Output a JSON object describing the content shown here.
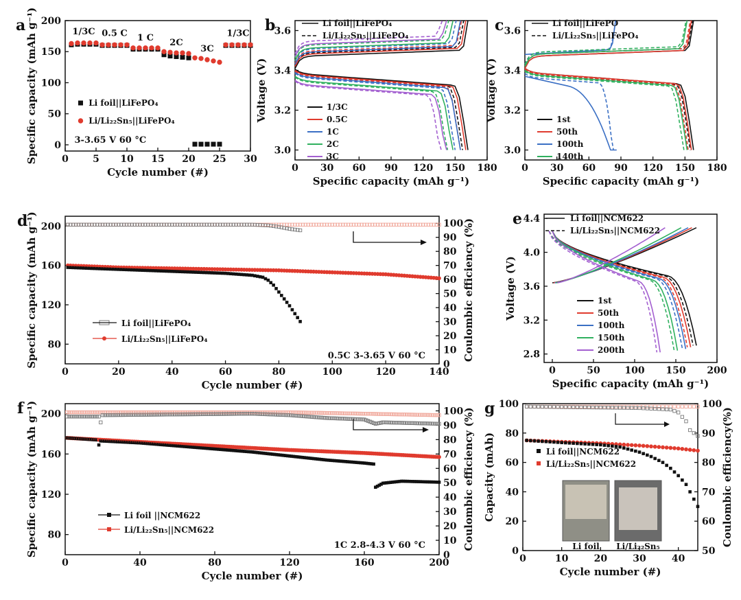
{
  "colors": {
    "black": "#111111",
    "red": "#e03b2e",
    "blue": "#3a6fc4",
    "green": "#2fb05e",
    "purple": "#a35fd0",
    "ce_red": "#f0a79a",
    "ce_gray": "#777777"
  },
  "charts": {
    "a": {
      "label": "a",
      "type": "scatter",
      "xlabel": "Cycle number (#)",
      "ylabel": "Specific capacity (mAh g⁻¹)",
      "xlim": [
        0,
        30
      ],
      "ylim": [
        -10,
        200
      ],
      "xticks": [
        0,
        5,
        10,
        15,
        20,
        25,
        30
      ],
      "yticks": [
        0,
        50,
        100,
        150,
        200
      ],
      "xtick_labels": [
        "0",
        "5",
        "10",
        "15",
        "20",
        "25",
        "30"
      ],
      "ytick_labels": [
        "0",
        "50",
        "100",
        "150",
        "200"
      ],
      "rate_labels": [
        {
          "text": "1/3C",
          "x": 3,
          "y": 178
        },
        {
          "text": "0.5 C",
          "x": 8,
          "y": 175
        },
        {
          "text": "1 C",
          "x": 13,
          "y": 168
        },
        {
          "text": "2C",
          "x": 18,
          "y": 160
        },
        {
          "text": "3C",
          "x": 23,
          "y": 150
        },
        {
          "text": "1/3C",
          "x": 28,
          "y": 175
        }
      ],
      "condition": "3-3.65 V 60 °C",
      "legend": [
        "Li foil||LiFePO₄",
        "Li/Li₂₂Sn₅||LiFePO₄"
      ],
      "series": [
        {
          "name": "Li foil||LiFePO4",
          "color": "black",
          "marker": "square",
          "points": [
            [
              1,
              161
            ],
            [
              2,
              162
            ],
            [
              3,
              162
            ],
            [
              4,
              162
            ],
            [
              5,
              162
            ],
            [
              6,
              160
            ],
            [
              7,
              160
            ],
            [
              8,
              160
            ],
            [
              9,
              160
            ],
            [
              10,
              160
            ],
            [
              11,
              154
            ],
            [
              12,
              154
            ],
            [
              13,
              154
            ],
            [
              14,
              154
            ],
            [
              15,
              154
            ],
            [
              16,
              145
            ],
            [
              17,
              143
            ],
            [
              18,
              142
            ],
            [
              19,
              141
            ],
            [
              20,
              140
            ],
            [
              21,
              1
            ],
            [
              22,
              1
            ],
            [
              23,
              1
            ],
            [
              24,
              1
            ],
            [
              25,
              1
            ],
            [
              26,
              160
            ],
            [
              27,
              160
            ],
            [
              28,
              160
            ],
            [
              29,
              160
            ],
            [
              30,
              160
            ]
          ]
        },
        {
          "name": "Li/Li22Sn5||LiFePO4",
          "color": "red",
          "marker": "circle",
          "points": [
            [
              1,
              163
            ],
            [
              2,
              164
            ],
            [
              3,
              164
            ],
            [
              4,
              164
            ],
            [
              5,
              164
            ],
            [
              6,
              161
            ],
            [
              7,
              161
            ],
            [
              8,
              161
            ],
            [
              9,
              161
            ],
            [
              10,
              161
            ],
            [
              11,
              156
            ],
            [
              12,
              156
            ],
            [
              13,
              156
            ],
            [
              14,
              156
            ],
            [
              15,
              156
            ],
            [
              16,
              150
            ],
            [
              17,
              149
            ],
            [
              18,
              148
            ],
            [
              19,
              148
            ],
            [
              20,
              147
            ],
            [
              21,
              140
            ],
            [
              22,
              139
            ],
            [
              23,
              137
            ],
            [
              24,
              135
            ],
            [
              25,
              133
            ],
            [
              26,
              161
            ],
            [
              27,
              161
            ],
            [
              28,
              161
            ],
            [
              29,
              161
            ],
            [
              30,
              161
            ]
          ]
        }
      ]
    },
    "b": {
      "label": "b",
      "type": "line",
      "xlabel": "Specific capacity (mAh g⁻¹)",
      "ylabel": "Voltage (V)",
      "xlim": [
        0,
        180
      ],
      "ylim": [
        2.95,
        3.65
      ],
      "xticks": [
        0,
        30,
        60,
        90,
        120,
        150,
        180
      ],
      "yticks": [
        3.0,
        3.2,
        3.4,
        3.6
      ],
      "xtick_labels": [
        "0",
        "30",
        "60",
        "90",
        "120",
        "150",
        "180"
      ],
      "ytick_labels": [
        "3.0",
        "3.2",
        "3.4",
        "3.6"
      ],
      "legend_top": [
        "Li foil||LiFePO₄",
        "Li/Li₂₂Sn₅||LiFePO₄"
      ],
      "legend_rates": [
        "1/3C",
        "0.5C",
        "1C",
        "2C",
        "3C"
      ],
      "curves": [
        {
          "rate": "1/3C",
          "color": "black",
          "cap": 162,
          "vc": 3.47,
          "vd": 3.385
        },
        {
          "rate": "0.5C",
          "color": "red",
          "cap": 160,
          "vc": 3.48,
          "vd": 3.38
        },
        {
          "rate": "1C",
          "color": "blue",
          "cap": 155,
          "vc": 3.49,
          "vd": 3.37
        },
        {
          "rate": "2C",
          "color": "green",
          "cap": 148,
          "vc": 3.51,
          "vd": 3.35
        },
        {
          "rate": "3C",
          "color": "purple",
          "cap": 142,
          "vc": 3.53,
          "vd": 3.33
        }
      ]
    },
    "c": {
      "label": "c",
      "type": "line",
      "xlabel": "Specific capacity (mAh g⁻¹)",
      "ylabel": "Voltage (V)",
      "xlim": [
        0,
        180
      ],
      "ylim": [
        2.95,
        3.65
      ],
      "xticks": [
        0,
        30,
        60,
        90,
        120,
        150,
        180
      ],
      "yticks": [
        3.0,
        3.2,
        3.4,
        3.6
      ],
      "xtick_labels": [
        "0",
        "30",
        "60",
        "90",
        "120",
        "150",
        "180"
      ],
      "ytick_labels": [
        "3.0",
        "3.2",
        "3.4",
        "3.6"
      ],
      "legend_top": [
        "Li foil||LiFePO",
        "Li/Li₂₂Sn₅||LiFePO₄"
      ],
      "legend_cycles": [
        "1st",
        "50th",
        "100th",
        "140th"
      ],
      "curves": [
        {
          "cycle": "1st",
          "color": "black",
          "cap": 158,
          "vc": 3.47,
          "vd": 3.39
        },
        {
          "cycle": "50th",
          "color": "red",
          "cap": 156,
          "vc": 3.47,
          "vd": 3.39
        },
        {
          "cycle": "100th",
          "color": "blue",
          "cap": 86,
          "vc": 3.48,
          "vd": 3.37
        },
        {
          "cycle": "140th",
          "color": "green",
          "cap": 152,
          "vc": 3.48,
          "vd": 3.38
        }
      ]
    },
    "d": {
      "label": "d",
      "type": "scatter",
      "xlabel": "Cycle number (#)",
      "ylabel": "Specific capacity (mAh g⁻¹)",
      "y2label": "Coulombic efficiency (%)",
      "xlim": [
        0,
        140
      ],
      "ylim": [
        60,
        210
      ],
      "y2lim": [
        0,
        105
      ],
      "xticks": [
        0,
        20,
        40,
        60,
        80,
        100,
        120,
        140
      ],
      "yticks": [
        80,
        120,
        160,
        200
      ],
      "y2ticks": [
        0,
        10,
        20,
        30,
        40,
        50,
        60,
        70,
        80,
        90,
        100
      ],
      "xtick_labels": [
        "0",
        "20",
        "40",
        "60",
        "80",
        "100",
        "120",
        "140"
      ],
      "ytick_labels": [
        "80",
        "120",
        "160",
        "200"
      ],
      "y2tick_labels": [
        "0",
        "10",
        "20",
        "30",
        "40",
        "50",
        "60",
        "70",
        "80",
        "90",
        "100"
      ],
      "legend": [
        "Li foil||LiFePO₄",
        "Li/Li₂₂Sn₅||LiFePO₄"
      ],
      "condition": "0.5C  3-3.65 V  60 °C",
      "foil_capacity": [
        [
          1,
          158
        ],
        [
          10,
          157
        ],
        [
          20,
          156
        ],
        [
          30,
          155
        ],
        [
          40,
          154
        ],
        [
          50,
          153
        ],
        [
          60,
          152
        ],
        [
          70,
          150
        ],
        [
          74,
          148
        ],
        [
          76,
          145
        ],
        [
          78,
          140
        ],
        [
          80,
          133
        ],
        [
          82,
          126
        ],
        [
          84,
          119
        ],
        [
          86,
          111
        ],
        [
          88,
          103
        ]
      ],
      "alloy_capacity": [
        [
          1,
          160
        ],
        [
          20,
          158
        ],
        [
          40,
          157
        ],
        [
          60,
          156
        ],
        [
          80,
          155
        ],
        [
          100,
          153
        ],
        [
          120,
          151
        ],
        [
          130,
          149
        ],
        [
          140,
          147
        ]
      ],
      "foil_ce": [
        [
          1,
          99
        ],
        [
          70,
          99
        ],
        [
          76,
          98.5
        ],
        [
          80,
          97.5
        ],
        [
          84,
          96
        ],
        [
          88,
          95
        ]
      ],
      "alloy_ce": [
        [
          1,
          99
        ],
        [
          70,
          99
        ],
        [
          100,
          99
        ],
        [
          140,
          99
        ]
      ]
    },
    "e": {
      "label": "e",
      "type": "line",
      "xlabel": "Specific capacity (mAh g⁻¹)",
      "ylabel": "Voltage (V)",
      "xlim": [
        -10,
        200
      ],
      "ylim": [
        2.7,
        4.45
      ],
      "xticks": [
        0,
        50,
        100,
        150,
        200
      ],
      "yticks": [
        2.8,
        3.2,
        3.6,
        4.0,
        4.4
      ],
      "xtick_labels": [
        "0",
        "50",
        "100",
        "150",
        "200"
      ],
      "ytick_labels": [
        "2.8",
        "3.2",
        "3.6",
        "4.0",
        "4.4"
      ],
      "legend_top": [
        "Li foil||NCM622",
        "Li/Li₂₂Sn₅||NCM622"
      ],
      "legend_cycles": [
        "1st",
        "50th",
        "100th",
        "150th",
        "200th"
      ],
      "curves": [
        {
          "cycle": "1st",
          "color": "black",
          "cap": 175
        },
        {
          "cycle": "50th",
          "color": "red",
          "cap": 168
        },
        {
          "cycle": "100th",
          "color": "blue",
          "cap": 162
        },
        {
          "cycle": "150th",
          "color": "green",
          "cap": 152
        },
        {
          "cycle": "200th",
          "color": "purple",
          "cap": 131
        }
      ]
    },
    "f": {
      "label": "f",
      "type": "scatter",
      "xlabel": "Cycle number (#)",
      "ylabel": "Specific capacity (mAh g⁻¹)",
      "y2label": "Coulombic efficiency (%)",
      "xlim": [
        0,
        200
      ],
      "ylim": [
        60,
        210
      ],
      "y2lim": [
        0,
        105
      ],
      "xticks": [
        0,
        40,
        80,
        120,
        160,
        200
      ],
      "yticks": [
        80,
        120,
        160,
        200
      ],
      "y2ticks": [
        0,
        10,
        20,
        30,
        40,
        50,
        60,
        70,
        80,
        90,
        100
      ],
      "xtick_labels": [
        "0",
        "40",
        "80",
        "120",
        "160",
        "200"
      ],
      "ytick_labels": [
        "80",
        "120",
        "160",
        "200"
      ],
      "y2tick_labels": [
        "0",
        "10",
        "20",
        "30",
        "40",
        "50",
        "60",
        "70",
        "80",
        "90",
        "100"
      ],
      "legend": [
        "Li foil ||NCM622",
        "Li/Li₂₂Sn₅||NCM622"
      ],
      "condition": "1C  2.8-4.3 V  60 °C",
      "foil_capacity": [
        [
          1,
          176
        ],
        [
          17,
          174
        ],
        [
          18,
          169
        ],
        [
          19,
          173
        ],
        [
          40,
          171
        ],
        [
          60,
          168
        ],
        [
          80,
          165
        ],
        [
          100,
          162
        ],
        [
          120,
          158
        ],
        [
          140,
          154
        ],
        [
          160,
          151
        ],
        [
          165,
          150
        ],
        [
          166,
          127
        ],
        [
          170,
          131
        ],
        [
          180,
          133
        ],
        [
          200,
          132
        ]
      ],
      "alloy_capacity": [
        [
          1,
          176
        ],
        [
          40,
          172
        ],
        [
          80,
          168
        ],
        [
          120,
          164
        ],
        [
          160,
          161
        ],
        [
          200,
          157
        ]
      ],
      "foil_ce": [
        [
          1,
          96
        ],
        [
          18,
          96
        ],
        [
          19,
          92
        ],
        [
          20,
          97
        ],
        [
          100,
          98
        ],
        [
          120,
          97
        ],
        [
          140,
          95
        ],
        [
          160,
          94
        ],
        [
          166,
          91
        ],
        [
          170,
          92
        ],
        [
          200,
          91
        ]
      ],
      "alloy_ce": [
        [
          1,
          99
        ],
        [
          60,
          99
        ],
        [
          120,
          99
        ],
        [
          160,
          98
        ],
        [
          200,
          97
        ]
      ]
    },
    "g": {
      "label": "g",
      "type": "scatter",
      "xlabel": "Cycle number (#)",
      "ylabel": "Capacity (mAh)",
      "y2label": "Coulombic efficiency(%)",
      "xlim": [
        0,
        45
      ],
      "ylim": [
        0,
        100
      ],
      "y2lim": [
        50,
        100
      ],
      "xticks": [
        0,
        10,
        20,
        30,
        40
      ],
      "yticks": [
        0,
        20,
        40,
        60,
        80,
        100
      ],
      "y2ticks": [
        50,
        60,
        70,
        80,
        90,
        100
      ],
      "xtick_labels": [
        "0",
        "10",
        "20",
        "30",
        "40"
      ],
      "ytick_labels": [
        "0",
        "20",
        "40",
        "60",
        "80",
        "100"
      ],
      "y2tick_labels": [
        "50",
        "60",
        "70",
        "80",
        "90",
        "100"
      ],
      "legend": [
        "Li foil||NCM622",
        "Li/Li₂₂Sn₅||NCM622"
      ],
      "photo_labels": [
        "Li foil",
        "Li/Li₂₂Sn₅"
      ],
      "foil_capacity": [
        [
          1,
          75
        ],
        [
          10,
          73.5
        ],
        [
          20,
          72
        ],
        [
          25,
          70.5
        ],
        [
          30,
          67
        ],
        [
          33,
          64
        ],
        [
          36,
          60
        ],
        [
          38,
          56
        ],
        [
          40,
          51
        ],
        [
          42,
          45
        ],
        [
          43,
          40
        ],
        [
          44,
          35
        ],
        [
          45,
          30
        ]
      ],
      "alloy_capacity": [
        [
          1,
          75
        ],
        [
          10,
          74
        ],
        [
          20,
          73
        ],
        [
          30,
          71.5
        ],
        [
          40,
          69.5
        ],
        [
          45,
          68
        ]
      ],
      "foil_ce": [
        [
          1,
          99
        ],
        [
          30,
          98.5
        ],
        [
          38,
          98
        ],
        [
          40,
          97
        ],
        [
          42,
          94
        ],
        [
          43,
          91
        ],
        [
          45,
          89
        ]
      ],
      "alloy_ce": [
        [
          1,
          99
        ],
        [
          20,
          99
        ],
        [
          30,
          99
        ],
        [
          40,
          99
        ],
        [
          45,
          99
        ]
      ]
    }
  }
}
